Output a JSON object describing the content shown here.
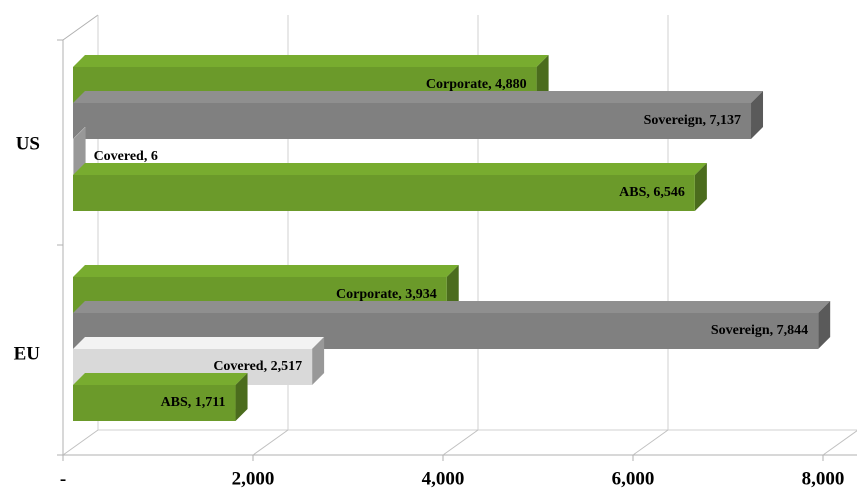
{
  "chart_data": {
    "type": "bar3d",
    "categories": [
      "US",
      "EU"
    ],
    "series": [
      {
        "name": "Corporate",
        "color": "#6b9a2a",
        "values": [
          4880,
          3934
        ],
        "value_labels": [
          "Corporate, 4,880",
          "Corporate, 3,934"
        ]
      },
      {
        "name": "Sovereign",
        "color": "#808080",
        "values": [
          7137,
          7844
        ],
        "value_labels": [
          "Sovereign, 7,137",
          "Sovereign, 7,844"
        ]
      },
      {
        "name": "Covered",
        "color": "#d9d9d9",
        "values": [
          6,
          2517
        ],
        "value_labels": [
          "Covered, 6",
          "Covered, 2,517"
        ]
      },
      {
        "name": "ABS",
        "color": "#6b9a2a",
        "values": [
          6546,
          1711
        ],
        "value_labels": [
          "ABS, 6,546",
          "ABS, 1,711"
        ]
      }
    ],
    "xlim": [
      0,
      8000
    ],
    "xticks": [
      {
        "value": 0,
        "label": "-"
      },
      {
        "value": 2000,
        "label": "2,000"
      },
      {
        "value": 4000,
        "label": "4,000"
      },
      {
        "value": 6000,
        "label": "6,000"
      },
      {
        "value": 8000,
        "label": "8,000"
      }
    ],
    "grid": true
  }
}
